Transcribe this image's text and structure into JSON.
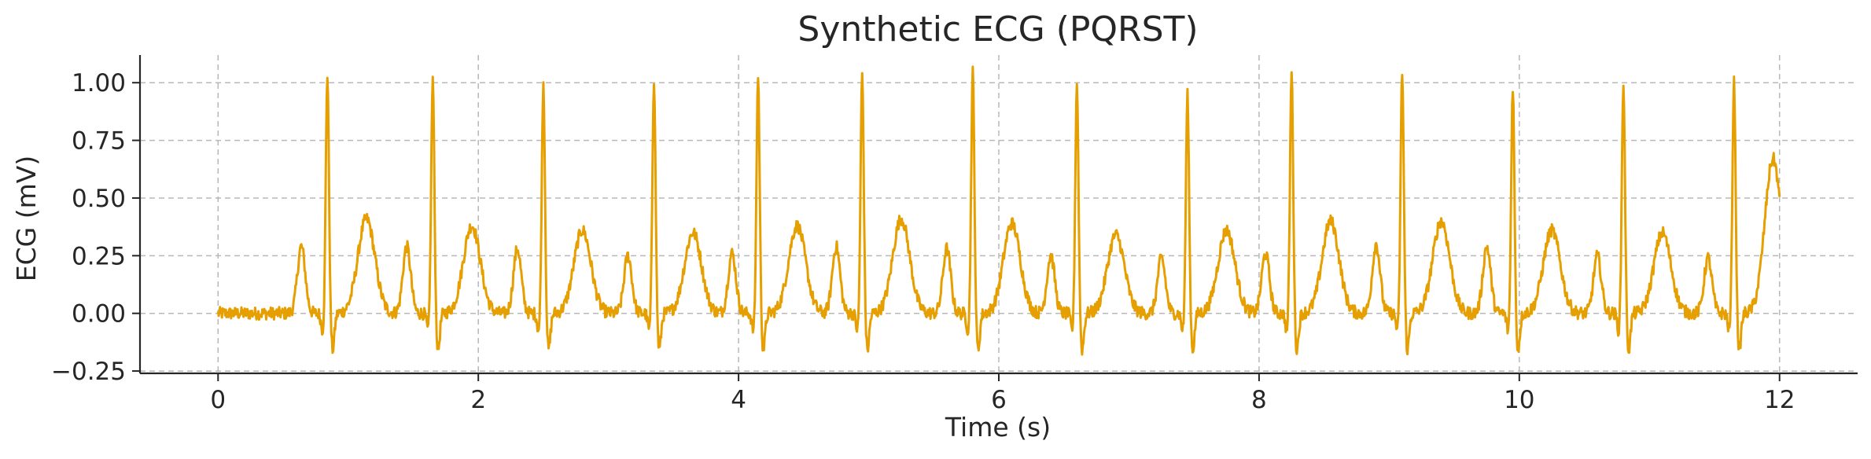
{
  "chart_data": {
    "type": "line",
    "title": "Synthetic ECG (PQRST)",
    "xlabel": "Time (s)",
    "ylabel": "ECG (mV)",
    "xlim": [
      -0.6,
      12.6
    ],
    "ylim": [
      -0.26,
      1.12
    ],
    "xticks": [
      0,
      2,
      4,
      6,
      8,
      10,
      12
    ],
    "xtick_labels": [
      "0",
      "2",
      "4",
      "6",
      "8",
      "10",
      "12"
    ],
    "yticks": [
      -0.25,
      0.0,
      0.25,
      0.5,
      0.75,
      1.0
    ],
    "ytick_labels": [
      "−0.25",
      "0.00",
      "0.25",
      "0.50",
      "0.75",
      "1.00"
    ],
    "grid": true,
    "line_color": "#E69F00",
    "series": [
      {
        "r_peak_times_s": [
          0.84,
          1.65,
          2.5,
          3.35,
          4.15,
          4.95,
          5.8,
          6.6,
          7.45,
          8.25,
          9.1,
          9.95,
          10.8,
          11.65
        ],
        "r_peak_amplitudes_mV": [
          1.04,
          1.02,
          1.0,
          1.02,
          1.03,
          1.04,
          1.05,
          1.0,
          0.95,
          1.05,
          1.05,
          0.99,
          1.0,
          1.01
        ],
        "t_wave_amplitudes_mV": [
          0.41,
          0.38,
          0.36,
          0.35,
          0.38,
          0.41,
          0.39,
          0.34,
          0.36,
          0.4,
          0.4,
          0.36,
          0.35,
          0.37
        ],
        "p_wave_amplitudes_mV": [
          0.29,
          0.29,
          0.28,
          0.25,
          0.26,
          0.29,
          0.28,
          0.25,
          0.24,
          0.26,
          0.3,
          0.29,
          0.25,
          0.24
        ],
        "baseline_mV": 0.0,
        "end_time_s": 12.0
      }
    ]
  }
}
